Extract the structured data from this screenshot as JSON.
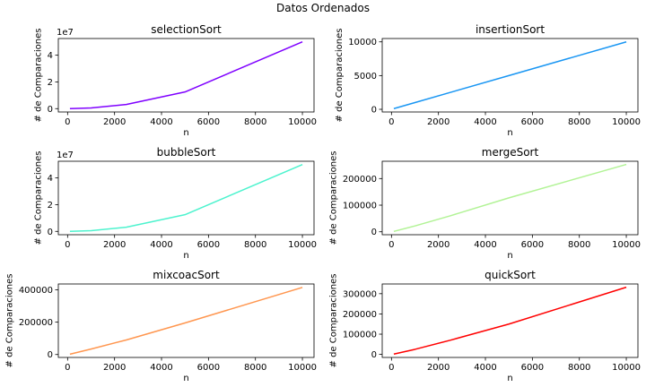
{
  "figure": {
    "suptitle": "Datos Ordenados"
  },
  "chart_data": [
    {
      "type": "line",
      "title": "selectionSort",
      "xlabel": "n",
      "ylabel": "# de Comparaciones",
      "color": "#7f00ff",
      "x": [
        100,
        1000,
        2500,
        5000,
        10000
      ],
      "y": [
        4950,
        499500,
        3123750,
        12497500,
        49995000
      ],
      "xlim": [
        -395,
        10495
      ],
      "ylim": [
        -2500000,
        52500000
      ],
      "xticks": [
        0,
        2000,
        4000,
        6000,
        8000,
        10000
      ],
      "xtick_labels": [
        "0",
        "2000",
        "4000",
        "6000",
        "8000",
        "10000"
      ],
      "yticks": [
        0,
        20000000,
        40000000
      ],
      "ytick_labels": [
        "0",
        "2",
        "4"
      ],
      "offset_text": "1e7"
    },
    {
      "type": "line",
      "title": "insertionSort",
      "xlabel": "n",
      "ylabel": "# de Comparaciones",
      "color": "#1996f3",
      "x": [
        100,
        1000,
        2500,
        5000,
        10000
      ],
      "y": [
        99,
        999,
        2499,
        4999,
        9999
      ],
      "xlim": [
        -395,
        10495
      ],
      "ylim": [
        -396,
        10494
      ],
      "xticks": [
        0,
        2000,
        4000,
        6000,
        8000,
        10000
      ],
      "xtick_labels": [
        "0",
        "2000",
        "4000",
        "6000",
        "8000",
        "10000"
      ],
      "yticks": [
        0,
        5000,
        10000
      ],
      "ytick_labels": [
        "0",
        "5000",
        "10000"
      ],
      "offset_text": ""
    },
    {
      "type": "line",
      "title": "bubbleSort",
      "xlabel": "n",
      "ylabel": "# de Comparaciones",
      "color": "#4df3ce",
      "x": [
        100,
        1000,
        2500,
        5000,
        10000
      ],
      "y": [
        4950,
        499500,
        3123750,
        12497500,
        49995000
      ],
      "xlim": [
        -395,
        10495
      ],
      "ylim": [
        -2500000,
        52500000
      ],
      "xticks": [
        0,
        2000,
        4000,
        6000,
        8000,
        10000
      ],
      "xtick_labels": [
        "0",
        "2000",
        "4000",
        "6000",
        "8000",
        "10000"
      ],
      "yticks": [
        0,
        20000000,
        40000000
      ],
      "ytick_labels": [
        "0",
        "2",
        "4"
      ],
      "offset_text": "1e7"
    },
    {
      "type": "line",
      "title": "mergeSort",
      "xlabel": "n",
      "ylabel": "# de Comparaciones",
      "color": "#b2f396",
      "x": [
        100,
        1000,
        2500,
        5000,
        10000
      ],
      "y": [
        1500,
        22000,
        60000,
        127500,
        253000
      ],
      "xlim": [
        -395,
        10495
      ],
      "ylim": [
        -11000,
        265000
      ],
      "xticks": [
        0,
        2000,
        4000,
        6000,
        8000,
        10000
      ],
      "xtick_labels": [
        "0",
        "2000",
        "4000",
        "6000",
        "8000",
        "10000"
      ],
      "yticks": [
        0,
        100000,
        200000
      ],
      "ytick_labels": [
        "0",
        "100000",
        "200000"
      ],
      "offset_text": ""
    },
    {
      "type": "line",
      "title": "mixcoacSort",
      "xlabel": "n",
      "ylabel": "# de Comparaciones",
      "color": "#ff964f",
      "x": [
        100,
        1000,
        2500,
        5000,
        10000
      ],
      "y": [
        2000,
        34000,
        90000,
        195000,
        415000
      ],
      "xlim": [
        -395,
        10495
      ],
      "ylim": [
        -18000,
        436000
      ],
      "xticks": [
        0,
        2000,
        4000,
        6000,
        8000,
        10000
      ],
      "xtick_labels": [
        "0",
        "2000",
        "4000",
        "6000",
        "8000",
        "10000"
      ],
      "yticks": [
        0,
        200000,
        400000
      ],
      "ytick_labels": [
        "0",
        "200000",
        "400000"
      ],
      "offset_text": ""
    },
    {
      "type": "line",
      "title": "quickSort",
      "xlabel": "n",
      "ylabel": "# de Comparaciones",
      "color": "#ff0000",
      "x": [
        100,
        1000,
        2500,
        5000,
        10000
      ],
      "y": [
        1500,
        25000,
        70000,
        150000,
        332000
      ],
      "xlim": [
        -395,
        10495
      ],
      "ylim": [
        -15000,
        348000
      ],
      "xticks": [
        0,
        2000,
        4000,
        6000,
        8000,
        10000
      ],
      "xtick_labels": [
        "0",
        "2000",
        "4000",
        "6000",
        "8000",
        "10000"
      ],
      "yticks": [
        0,
        100000,
        200000,
        300000
      ],
      "ytick_labels": [
        "0",
        "100000",
        "200000",
        "300000"
      ],
      "offset_text": ""
    }
  ]
}
